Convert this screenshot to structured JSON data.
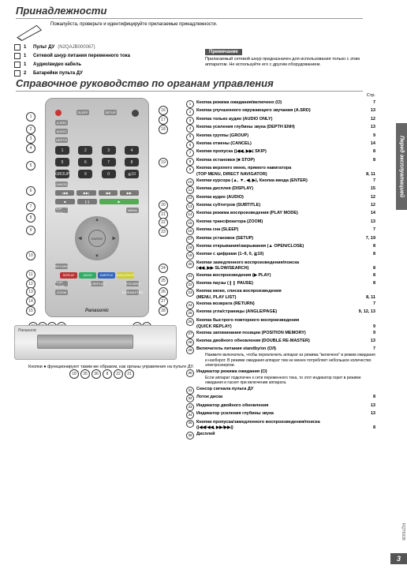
{
  "titles": {
    "accessories": "Принадлежности",
    "reference": "Справочное руководство по органам управления"
  },
  "intro": "Пожалуйста, проверьте и идентифицируйте прилагаемые принадлежности.",
  "accessories_list": [
    {
      "qty": "1",
      "label": "Пульт ДУ",
      "code": "(N2QAJB000067)"
    },
    {
      "qty": "1",
      "label": "Сетевой шнур питания переменного тока",
      "code": ""
    },
    {
      "qty": "1",
      "label": "Аудио/видео кабель",
      "code": ""
    },
    {
      "qty": "2",
      "label": "Батарейки пульта ДУ",
      "code": ""
    }
  ],
  "note": {
    "label": "Примечание",
    "body": "Прилагаемый сетевой шнур предназначен для использования только с этим аппаратом. Не используйте его с другим оборудованием."
  },
  "brand": "Panasonic",
  "str_label": "Стр.",
  "items": [
    {
      "n": "1",
      "t": "Кнопка режима ожидания/включено (⏻)",
      "p": "7"
    },
    {
      "n": "2",
      "t": "Кнопка улучшенного окружающего звучания (A.SRD)",
      "p": "13"
    },
    {
      "n": "3",
      "t": "Кнопка только аудио (AUDIO ONLY)",
      "p": "12"
    },
    {
      "n": "4",
      "t": "Кнопка усиления глубины звука (DEPTH ENH)",
      "p": "13"
    },
    {
      "n": "5",
      "t": "Кнопка группы (GROUP)",
      "p": "9"
    },
    {
      "n": "6",
      "t": "Кнопка отмены (CANCEL)",
      "p": "14"
    },
    {
      "n": "7",
      "t": "Кнопки пропуска (|◀◀, ▶▶| SKIP)",
      "p": "8"
    },
    {
      "n": "8",
      "t": "Кнопка остановки (■ STOP)",
      "p": "8"
    },
    {
      "n": "9",
      "t": "Кнопка верхнего меню, прямого навигатора\n(TOP MENU, DIRECT NAVIGATOR)",
      "p": "8, 11"
    },
    {
      "n": "10",
      "t": "Кнопки курсора (▲, ▼, ◀, ▶), Кнопка ввода (ENTER)",
      "p": "7"
    },
    {
      "n": "11",
      "t": "Кнопка дисплея (DISPLAY)",
      "p": "15"
    },
    {
      "n": "12",
      "t": "Кнопка аудио (AUDIO)",
      "p": "12"
    },
    {
      "n": "13",
      "t": "Кнопка субтитров (SUBTITLE)",
      "p": "12"
    },
    {
      "n": "14",
      "t": "Кнопка режима воспроизведения (PLAY MODE)",
      "p": "14"
    },
    {
      "n": "15",
      "t": "Кнопка трансфокатора (ZOOM)",
      "p": "13"
    },
    {
      "n": "16",
      "t": "Кнопка сна (SLEEP)",
      "p": "7"
    },
    {
      "n": "17",
      "t": "Кнопка установок (SETUP)",
      "p": "7, 19"
    },
    {
      "n": "18",
      "t": "Кнопка открывания/закрывания (▲ OPEN/CLOSE)",
      "p": "8"
    },
    {
      "n": "19",
      "t": "Кнопки с цифрами (1–9, 0, ≧10)",
      "p": "8"
    },
    {
      "n": "20",
      "t": "Кнопки замедленного воспроизведения/поиска\n(◀◀, ▶▶ SLOW/SEARCH)",
      "p": "8"
    },
    {
      "n": "21",
      "t": "Кнопка воспроизведения (▶ PLAY)",
      "p": "8"
    },
    {
      "n": "22",
      "t": "Кнопка паузы (❙❙ PAUSE)",
      "p": "8"
    },
    {
      "n": "23",
      "t": "Кнопка меню, списка воспроизведения\n(MENU, PLAY LIST)",
      "p": "8, 11"
    },
    {
      "n": "24",
      "t": "Кнопка возврата (RETURN)",
      "p": "7"
    },
    {
      "n": "25",
      "t": "Кнопка угла/страницы (ANGLE/PAGE)",
      "p": "9, 12, 13"
    },
    {
      "n": "26",
      "t": "Кнопка быстрого повторного воспроизведения\n(QUICK REPLAY)",
      "p": "9"
    },
    {
      "n": "27",
      "t": "Кнопка запоминания позиции (POSITION MEMORY)",
      "p": "9"
    },
    {
      "n": "28",
      "t": "Кнопка двойного обновления (DOUBLE RE-MASTER)",
      "p": "13"
    },
    {
      "n": "29",
      "t": "Включатель питания standby/on (⏻/I)",
      "p": "7",
      "sub": "Нажмите включатель, чтобы переключить аппарат из режима \"включено\" в режим ожидания и наоборот. В режиме ожидания аппарат тем не менее потребляет небольшое количество электроэнергии."
    },
    {
      "n": "30",
      "t": "Индикатор режима ожидания (⏻)",
      "sub": "Если аппарат подключен к сети переменного тока, то этот индикатор горит в режиме ожидания и гаснет при включении аппарата."
    },
    {
      "n": "31",
      "t": "Сенсор сигнала пульта ДУ"
    },
    {
      "n": "32",
      "t": "Лоток диска",
      "p": "8"
    },
    {
      "n": "33",
      "t": "Индикатор двойного обновления",
      "p": "13"
    },
    {
      "n": "34",
      "t": "Индикатор усиления глубины звука",
      "p": "13"
    },
    {
      "n": "35",
      "t": "Кнопки пропуска/замедленного воспроизведения/поиска\n(|◀◀/◀◀, ▶▶/▶▶|)",
      "p": "8"
    },
    {
      "n": "36",
      "t": "Дисплей"
    }
  ],
  "footnote": "Кнопки ● функционируют таким же образом, как органы управления на пульте ДУ.",
  "side_tab": "Перед эксплуатацией",
  "page_number": "3",
  "doc_code": "RQT6938",
  "color_btns": [
    "DISPLAY",
    "AUDIO",
    "SUBTITLE",
    "ANGLE/PAGE"
  ],
  "color_colors": [
    "#b33",
    "#3a6",
    "#36b",
    "#cc3"
  ]
}
